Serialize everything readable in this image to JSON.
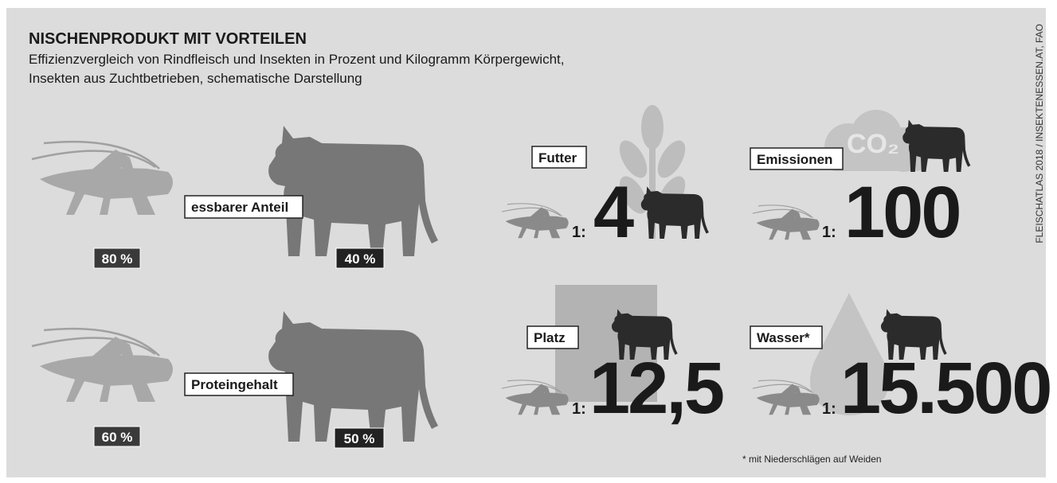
{
  "header": {
    "title": "NISCHENPRODUKT MIT VORTEILEN",
    "subtitle_lines": [
      "Effizienzvergleich von Rindfleisch und Insekten in Prozent und Kilogramm Körpergewicht,",
      "Insekten aus Zuchtbetrieben, schematische Darstellung"
    ],
    "source": "FLEISCHATLAS 2018 / INSEKTENESSEN.AT, FAO"
  },
  "comparisons": [
    {
      "label": "essbarer Anteil",
      "insect": "80 %",
      "cattle": "40 %"
    },
    {
      "label": "Proteingehalt",
      "insect": "60 %",
      "cattle": "50 %"
    }
  ],
  "ratios": [
    {
      "label": "Futter",
      "prefix": "1:",
      "value": "4"
    },
    {
      "label": "Emissionen",
      "prefix": "1:",
      "value": "100",
      "icon_text": "CO₂"
    },
    {
      "label": "Platz",
      "prefix": "1:",
      "value": "12,5"
    },
    {
      "label": "Wasser*",
      "prefix": "1:",
      "value": "15.500"
    }
  ],
  "footnote": "* mit Niederschlägen auf Weiden"
}
